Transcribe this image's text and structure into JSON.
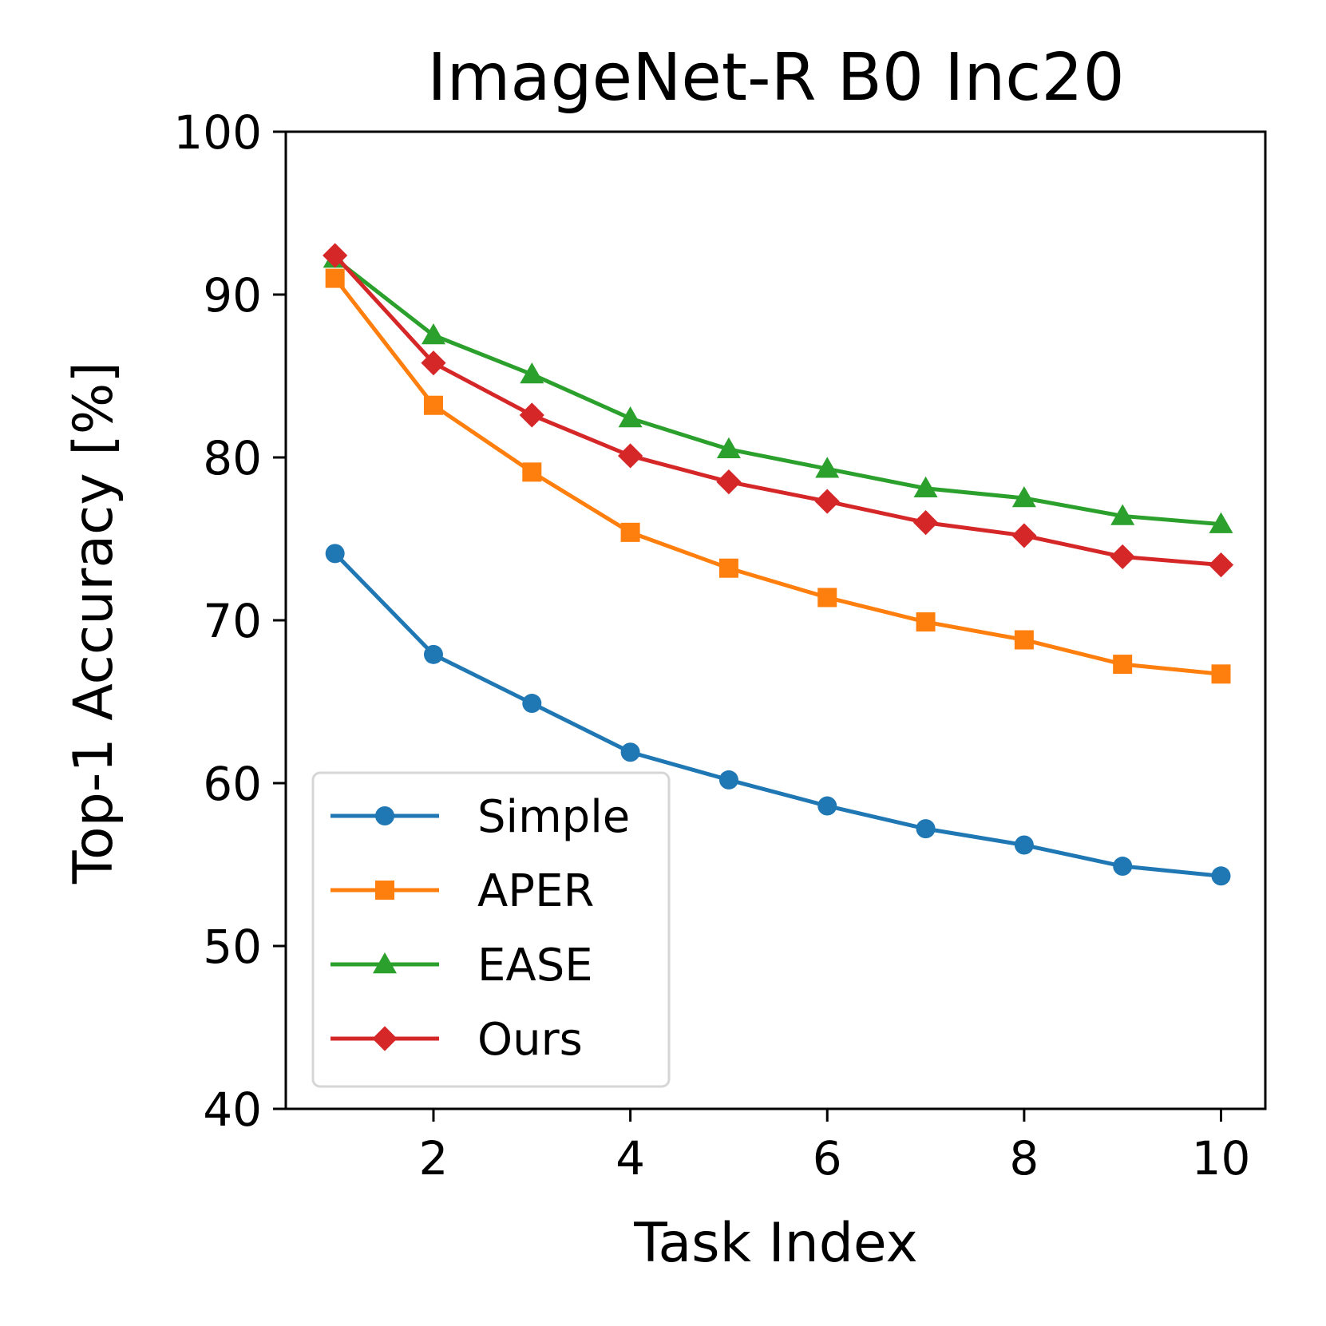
{
  "chart_data": {
    "type": "line",
    "title": "ImageNet-R B0 Inc20",
    "xlabel": "Task Index",
    "ylabel": "Top-1 Accuracy [%]",
    "x": [
      1,
      2,
      3,
      4,
      5,
      6,
      7,
      8,
      9,
      10
    ],
    "xlim": [
      0.5,
      10.45
    ],
    "ylim": [
      40,
      100
    ],
    "xticks": [
      2,
      4,
      6,
      8,
      10
    ],
    "yticks": [
      40,
      50,
      60,
      70,
      80,
      90,
      100
    ],
    "grid": false,
    "legend_position": "lower-left",
    "series": [
      {
        "name": "Simple",
        "color": "#1f77b4",
        "marker": "circle",
        "values": [
          74.1,
          67.9,
          64.9,
          61.9,
          60.2,
          58.6,
          57.2,
          56.2,
          54.9,
          54.3
        ]
      },
      {
        "name": "APER",
        "color": "#ff7f0e",
        "marker": "square",
        "values": [
          91.0,
          83.2,
          79.1,
          75.4,
          73.2,
          71.4,
          69.9,
          68.8,
          67.3,
          66.7
        ]
      },
      {
        "name": "EASE",
        "color": "#2ca02c",
        "marker": "triangle",
        "values": [
          92.2,
          87.5,
          85.1,
          82.4,
          80.5,
          79.3,
          78.1,
          77.5,
          76.4,
          75.9
        ]
      },
      {
        "name": "Ours",
        "color": "#d62728",
        "marker": "diamond",
        "values": [
          92.4,
          85.8,
          82.6,
          80.1,
          78.5,
          77.3,
          76.0,
          75.2,
          73.9,
          73.4
        ]
      }
    ]
  }
}
